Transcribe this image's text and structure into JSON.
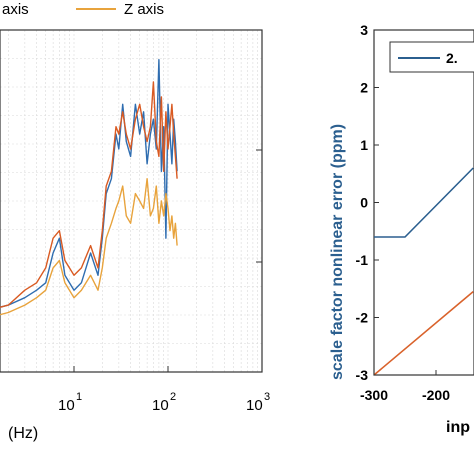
{
  "chart_data": [
    {
      "type": "line",
      "xscale": "log",
      "xlim": [
        1,
        1000
      ],
      "xticks": [
        {
          "value": 10,
          "base": "10",
          "exp": "1"
        },
        {
          "value": 100,
          "base": "10",
          "exp": "2"
        },
        {
          "value": 1000,
          "base": "10",
          "exp": "3"
        }
      ],
      "xlabel": "(Hz)",
      "legend": {
        "placement": "top",
        "entries": [
          {
            "name": "axis",
            "color": "#2f6db0"
          },
          {
            "name": "Z axis",
            "color": "#e8a33c"
          }
        ]
      },
      "grid": true,
      "series": [
        {
          "name": "axis",
          "color": "#2f6db0",
          "x": [
            1,
            2,
            3,
            4,
            5,
            6,
            7,
            8,
            10,
            12,
            15,
            18,
            20,
            22,
            25,
            28,
            30,
            33,
            36,
            40,
            45,
            50,
            55,
            60,
            65,
            70,
            75,
            80,
            85,
            90,
            95,
            100,
            105,
            110,
            115,
            120,
            125
          ],
          "y": [
            -5.4,
            -5.3,
            -5.2,
            -5.1,
            -5.0,
            -4.6,
            -4.4,
            -4.9,
            -5.1,
            -5.0,
            -4.6,
            -4.9,
            -4.4,
            -3.8,
            -3.6,
            -3.0,
            -3.2,
            -2.6,
            -3.1,
            -3.3,
            -2.6,
            -3.0,
            -2.7,
            -3.4,
            -3.0,
            -2.8,
            -3.2,
            -2.0,
            -3.5,
            -2.9,
            -4.4,
            -2.6,
            -3.0,
            -3.4,
            -2.8,
            -3.1,
            -3.5
          ]
        },
        {
          "name": "",
          "color": "#d95a22",
          "x": [
            1,
            2,
            3,
            4,
            5,
            6,
            7,
            8,
            10,
            12,
            15,
            18,
            20,
            22,
            25,
            28,
            30,
            33,
            36,
            40,
            45,
            50,
            55,
            60,
            65,
            70,
            75,
            80,
            85,
            90,
            95,
            100,
            105,
            110,
            115,
            120,
            125
          ],
          "y": [
            -5.4,
            -5.3,
            -5.1,
            -5.0,
            -4.8,
            -4.4,
            -4.3,
            -4.7,
            -4.9,
            -4.8,
            -4.5,
            -4.8,
            -4.3,
            -3.7,
            -3.5,
            -2.9,
            -3.0,
            -2.7,
            -3.0,
            -3.2,
            -2.8,
            -2.6,
            -2.9,
            -3.1,
            -2.9,
            -2.3,
            -3.1,
            -3.3,
            -2.5,
            -3.5,
            -2.7,
            -3.2,
            -2.9,
            -2.6,
            -3.0,
            -3.3,
            -3.6
          ]
        },
        {
          "name": "Z axis",
          "color": "#e8a33c",
          "x": [
            1,
            2,
            3,
            4,
            5,
            6,
            7,
            8,
            10,
            12,
            15,
            18,
            20,
            22,
            25,
            28,
            30,
            33,
            36,
            40,
            45,
            50,
            55,
            60,
            65,
            70,
            75,
            80,
            85,
            90,
            95,
            100,
            105,
            110,
            115,
            120,
            125
          ],
          "y": [
            -5.5,
            -5.4,
            -5.3,
            -5.2,
            -5.1,
            -4.8,
            -4.7,
            -5.0,
            -5.2,
            -5.1,
            -4.9,
            -5.1,
            -4.8,
            -4.4,
            -4.2,
            -4.0,
            -3.9,
            -3.7,
            -4.1,
            -4.2,
            -3.8,
            -3.9,
            -4.0,
            -3.6,
            -4.1,
            -4.0,
            -3.7,
            -4.2,
            -3.9,
            -4.1,
            -3.8,
            -4.0,
            -4.3,
            -4.1,
            -4.4,
            -4.2,
            -4.5
          ]
        }
      ]
    },
    {
      "type": "line",
      "ylabel": "scale factor nonlinear error (ppm)",
      "xlabel": "inp",
      "xlim": [
        -300,
        -140
      ],
      "ylim": [
        -3,
        3
      ],
      "xticks": [
        -300,
        -200
      ],
      "yticks": [
        -3,
        -2,
        -1,
        0,
        1,
        2,
        3
      ],
      "grid": false,
      "legend": {
        "placement": "top",
        "entries": [
          {
            "name": "2.",
            "color": "#2b5f8f"
          }
        ]
      },
      "series": [
        {
          "name": "2.",
          "color": "#2b5f8f",
          "x": [
            -300,
            -250,
            -140
          ],
          "y": [
            -0.6,
            -0.6,
            0.6
          ]
        },
        {
          "name": "",
          "color": "#d9622b",
          "x": [
            -300,
            -140
          ],
          "y": [
            -3.0,
            -1.55
          ]
        }
      ]
    }
  ]
}
